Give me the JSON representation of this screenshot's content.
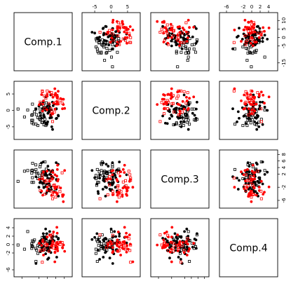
{
  "chart_data": {
    "type": "scatter",
    "subtype": "scatterplot-matrix",
    "title": "",
    "variables": [
      "Comp.1",
      "Comp.2",
      "Comp.3",
      "Comp.4"
    ],
    "ranges": [
      [
        -18,
        13
      ],
      [
        -8,
        8
      ],
      [
        -7.5,
        8.5
      ],
      [
        -7,
        5.5
      ]
    ],
    "ticks": [
      {
        "values": [
          -15,
          -5,
          0,
          5,
          10
        ],
        "labels": [
          "-15",
          "-5",
          "0",
          "5",
          "10"
        ]
      },
      {
        "values": [
          -5,
          0,
          5
        ],
        "labels": [
          "-5",
          "0",
          "5"
        ]
      },
      {
        "values": [
          -6,
          -2,
          2,
          4,
          6,
          8
        ],
        "labels": [
          "-6",
          "-2",
          "2",
          "4",
          "6",
          "8"
        ]
      },
      {
        "values": [
          -6,
          -2,
          0,
          2,
          4
        ],
        "labels": [
          "-6",
          "-2",
          "0",
          "2",
          "4"
        ]
      }
    ],
    "axis_placement": {
      "bottom": [
        "Comp.1",
        null,
        "Comp.3",
        null
      ],
      "top": [
        null,
        "Comp.2",
        null,
        "Comp.4"
      ],
      "left": [
        "Comp.2",
        null,
        "Comp.4"
      ],
      "right": [
        "Comp.1",
        null,
        "Comp.3"
      ]
    },
    "groups": [
      {
        "name": "",
        "color": "#000000",
        "marker": "filled-circle"
      },
      {
        "name": "",
        "color": "#000000",
        "marker": "open-square"
      },
      {
        "name": "",
        "color": "#ff0000",
        "marker": "filled-circle"
      },
      {
        "name": "",
        "color": "#ff0000",
        "marker": "open-square"
      }
    ],
    "points": [
      [
        -2.4,
        2.5,
        5.7,
        2.6,
        0
      ],
      [
        -6.7,
        0.5,
        1.2,
        -4.5,
        0
      ],
      [
        1.5,
        -2.3,
        0.6,
        -0.7,
        0
      ],
      [
        -0.3,
        -4.3,
        -1.0,
        2.6,
        0
      ],
      [
        -4.0,
        2.1,
        -0.3,
        0.4,
        0
      ],
      [
        2.0,
        4.7,
        1.8,
        0.4,
        0
      ],
      [
        0.9,
        0.5,
        -0.9,
        0.1,
        0
      ],
      [
        1.3,
        0.3,
        -1.3,
        0.9,
        0
      ],
      [
        -0.5,
        0.5,
        1.7,
        -0.7,
        0
      ],
      [
        0.8,
        -0.4,
        -2.6,
        -3.2,
        0
      ],
      [
        2.0,
        -1.3,
        2.7,
        -0.6,
        0
      ],
      [
        5.5,
        -2.4,
        0.1,
        -3.0,
        0
      ],
      [
        -1.7,
        -3.5,
        1.8,
        0.7,
        0
      ],
      [
        -2.0,
        0.4,
        -0.6,
        1.7,
        0
      ],
      [
        -1.0,
        0.8,
        2.1,
        -2.2,
        0
      ],
      [
        0.2,
        -3.5,
        0.8,
        -3.5,
        0
      ],
      [
        -0.2,
        -4.0,
        -3.3,
        -1.4,
        0
      ],
      [
        -1.0,
        -0.0,
        2.6,
        3.7,
        0
      ],
      [
        -2.1,
        -1.4,
        -2.1,
        -0.4,
        0
      ],
      [
        -3.5,
        -2.4,
        5.4,
        1.1,
        0
      ],
      [
        5.3,
        0.5,
        0.4,
        1.9,
        0
      ],
      [
        5.2,
        -2.5,
        -2.6,
        -0.7,
        0
      ],
      [
        -0.2,
        1.2,
        1.6,
        0.3,
        0
      ],
      [
        4.0,
        2.0,
        -3.3,
        0.9,
        0
      ],
      [
        3.0,
        2.5,
        3.0,
        2.0,
        0
      ],
      [
        0.7,
        1.7,
        3.2,
        -1.2,
        0
      ],
      [
        1.0,
        -0.5,
        -1.0,
        -0.7,
        0
      ],
      [
        5.2,
        0.4,
        5.5,
        -0.9,
        0
      ],
      [
        -2.7,
        0.6,
        -0.8,
        -1.4,
        0
      ],
      [
        6.5,
        -1.7,
        -4.7,
        1.5,
        0
      ],
      [
        2.1,
        -1.8,
        -1.9,
        -1.9,
        0
      ],
      [
        6.4,
        -1.5,
        5.0,
        1.3,
        0
      ],
      [
        -0.7,
        -3.9,
        -3.9,
        1.3,
        0
      ],
      [
        -1.7,
        -2.0,
        -0.2,
        1.4,
        0
      ],
      [
        2.6,
        -5.0,
        0.9,
        1.7,
        0
      ],
      [
        1.4,
        1.0,
        1.9,
        3.1,
        0
      ],
      [
        3.4,
        1.4,
        0.9,
        1.9,
        0
      ],
      [
        3.1,
        -5.8,
        3.1,
        1.2,
        0
      ],
      [
        -1.0,
        4.1,
        -1.8,
        1.7,
        0
      ],
      [
        2.5,
        -2.2,
        1.3,
        0.8,
        0
      ],
      [
        1.2,
        1.8,
        -3.1,
        -1.5,
        0
      ],
      [
        -4.4,
        -0.7,
        -0.6,
        0.8,
        0
      ],
      [
        -2.3,
        0.7,
        -0.5,
        1.9,
        0
      ],
      [
        2.4,
        0.2,
        -2.7,
        -0.0,
        0
      ],
      [
        0.3,
        -0.9,
        4.4,
        -0.6,
        0
      ],
      [
        -3.8,
        1.8,
        -3.5,
        0.6,
        0
      ],
      [
        1.1,
        -0.1,
        -3.0,
        0.4,
        0
      ],
      [
        -4.1,
        -1.6,
        0.5,
        -1.7,
        0
      ],
      [
        -2.9,
        -0.2,
        -0.8,
        -0.7,
        0
      ],
      [
        -5.0,
        1.3,
        -2.0,
        0.3,
        0
      ],
      [
        -6.7,
        -4.2,
        3.4,
        -4.0,
        1
      ],
      [
        -8.8,
        -1.3,
        0.9,
        -0.5,
        1
      ],
      [
        -5.6,
        -2.2,
        2.3,
        -0.2,
        1
      ],
      [
        -4.3,
        0.4,
        4.2,
        0.3,
        1
      ],
      [
        -8.8,
        1.9,
        3.2,
        0.9,
        1
      ],
      [
        -4.1,
        -2.9,
        4.9,
        0.2,
        1
      ],
      [
        -3.2,
        -3.7,
        1.0,
        -1.3,
        1
      ],
      [
        -8.7,
        -3.0,
        5.3,
        -0.5,
        1
      ],
      [
        -2.0,
        -4.4,
        -1.4,
        1.1,
        1
      ],
      [
        -9.2,
        -3.0,
        3.1,
        -0.9,
        1
      ],
      [
        -3.1,
        -2.2,
        2.6,
        -1.0,
        1
      ],
      [
        -11.6,
        0.1,
        3.1,
        3.1,
        1
      ],
      [
        -13.5,
        -2.0,
        2.9,
        -1.1,
        1
      ],
      [
        -8.2,
        -4.1,
        -0.5,
        0.7,
        1
      ],
      [
        -6.8,
        0.4,
        4.8,
        -0.9,
        1
      ],
      [
        -7.6,
        -0.4,
        2.8,
        1.1,
        1
      ],
      [
        -0.9,
        -4.6,
        1.6,
        -1.1,
        1
      ],
      [
        -4.6,
        -2.6,
        1.6,
        -0.5,
        1
      ],
      [
        -5.6,
        -4.6,
        0.6,
        -2.1,
        1
      ],
      [
        -17.3,
        0.4,
        -0.2,
        -0.1,
        1
      ],
      [
        -6.4,
        -1.3,
        2.3,
        -1.3,
        1
      ],
      [
        -2.2,
        1.6,
        2.8,
        -1.3,
        1
      ],
      [
        -0.7,
        2.3,
        3.5,
        1.0,
        1
      ],
      [
        -9.1,
        -3.8,
        -0.5,
        -0.2,
        1
      ],
      [
        -3.0,
        -3.6,
        2.7,
        1.7,
        1
      ],
      [
        -2.8,
        -1.1,
        2.1,
        0.4,
        1
      ],
      [
        -9.2,
        -1.5,
        2.3,
        0.2,
        1
      ],
      [
        -1.4,
        -2.7,
        5.7,
        2.3,
        1
      ],
      [
        3.6,
        2.2,
        -3.5,
        3.0,
        2
      ],
      [
        -0.1,
        4.3,
        -2.0,
        1.8,
        2
      ],
      [
        2.5,
        4.8,
        -4.5,
        -0.3,
        2
      ],
      [
        -0.2,
        0.2,
        2.9,
        0.1,
        2
      ],
      [
        10.2,
        0.6,
        3.1,
        -1.6,
        2
      ],
      [
        4.8,
        5.2,
        -2.1,
        -1.1,
        2
      ],
      [
        6.4,
        5.8,
        0.4,
        0.1,
        2
      ],
      [
        7.8,
        3.6,
        -2.2,
        0.6,
        2
      ],
      [
        5.6,
        4.1,
        -1.9,
        4.1,
        2
      ],
      [
        9.5,
        3.4,
        -4.3,
        -0.1,
        2
      ],
      [
        5.1,
        1.9,
        -3.6,
        -0.3,
        2
      ],
      [
        9.0,
        3.4,
        -4.8,
        -0.8,
        2
      ],
      [
        9.4,
        1.8,
        -6.4,
        -0.1,
        2
      ],
      [
        5.9,
        3.7,
        3.4,
        -1.0,
        2
      ],
      [
        3.0,
        -1.0,
        0.5,
        -0.0,
        2
      ],
      [
        8.9,
        0.5,
        -4.3,
        -0.7,
        2
      ],
      [
        6.1,
        1.9,
        -0.1,
        -1.5,
        2
      ],
      [
        1.4,
        5.6,
        -0.2,
        2.3,
        2
      ],
      [
        5.8,
        4.6,
        -4.1,
        2.7,
        2
      ],
      [
        4.5,
        0.4,
        1.8,
        -1.9,
        2
      ],
      [
        -2.3,
        2.9,
        2.7,
        -2.5,
        2
      ],
      [
        4.4,
        6.6,
        -2.0,
        -4.1,
        2
      ],
      [
        5.6,
        2.7,
        1.4,
        0.5,
        2
      ],
      [
        -4.8,
        1.7,
        0.4,
        0.3,
        2
      ],
      [
        -2.8,
        -0.2,
        0.5,
        0.7,
        2
      ],
      [
        -2.7,
        1.9,
        -4.4,
        1.1,
        2
      ],
      [
        5.8,
        2.5,
        -3.9,
        -0.6,
        2
      ],
      [
        6.0,
        4.1,
        4.7,
        0.3,
        2
      ],
      [
        3.3,
        4.0,
        2.5,
        0.7,
        2
      ],
      [
        -0.1,
        4.9,
        -3.0,
        1.8,
        2
      ],
      [
        -3.4,
        4.8,
        -3.2,
        -0.2,
        2
      ],
      [
        4.5,
        4.7,
        -2.4,
        -1.8,
        2
      ],
      [
        -1.5,
        0.6,
        -4.1,
        0.4,
        3
      ],
      [
        -2.9,
        5.7,
        1.8,
        -1.4,
        3
      ],
      [
        3.1,
        -3.4,
        -5.5,
        2.3,
        3
      ],
      [
        2.6,
        -0.5,
        1.2,
        -0.3,
        3
      ],
      [
        -4.2,
        2.5,
        -3.0,
        -1.4,
        3
      ],
      [
        -3.0,
        5.9,
        0.8,
        -4.2,
        3
      ],
      [
        4.9,
        2.4,
        -5.0,
        -0.1,
        3
      ],
      [
        6.4,
        2.0,
        -1.9,
        0.5,
        3
      ],
      [
        4.1,
        -0.5,
        -1.3,
        0.2,
        3
      ],
      [
        -0.9,
        3.7,
        -0.4,
        -0.2,
        3
      ],
      [
        7.4,
        3.0,
        -3.3,
        -0.0,
        3
      ],
      [
        8.7,
        2.2,
        2.4,
        0.5,
        3
      ],
      [
        1.0,
        2.1,
        -1.5,
        -1.6,
        3
      ],
      [
        3.7,
        4.5,
        -1.5,
        -0.8,
        3
      ],
      [
        -0.1,
        5.9,
        0.1,
        -0.1,
        3
      ],
      [
        -1.8,
        4.4,
        -0.0,
        -1.1,
        3
      ],
      [
        2.4,
        5.4,
        2.9,
        1.4,
        3
      ],
      [
        2.0,
        0.5,
        -3.2,
        2.2,
        3
      ],
      [
        2.0,
        -1.4,
        0.2,
        -0.7,
        3
      ],
      [
        3.0,
        -1.0,
        -4.3,
        0.3,
        3
      ]
    ]
  }
}
